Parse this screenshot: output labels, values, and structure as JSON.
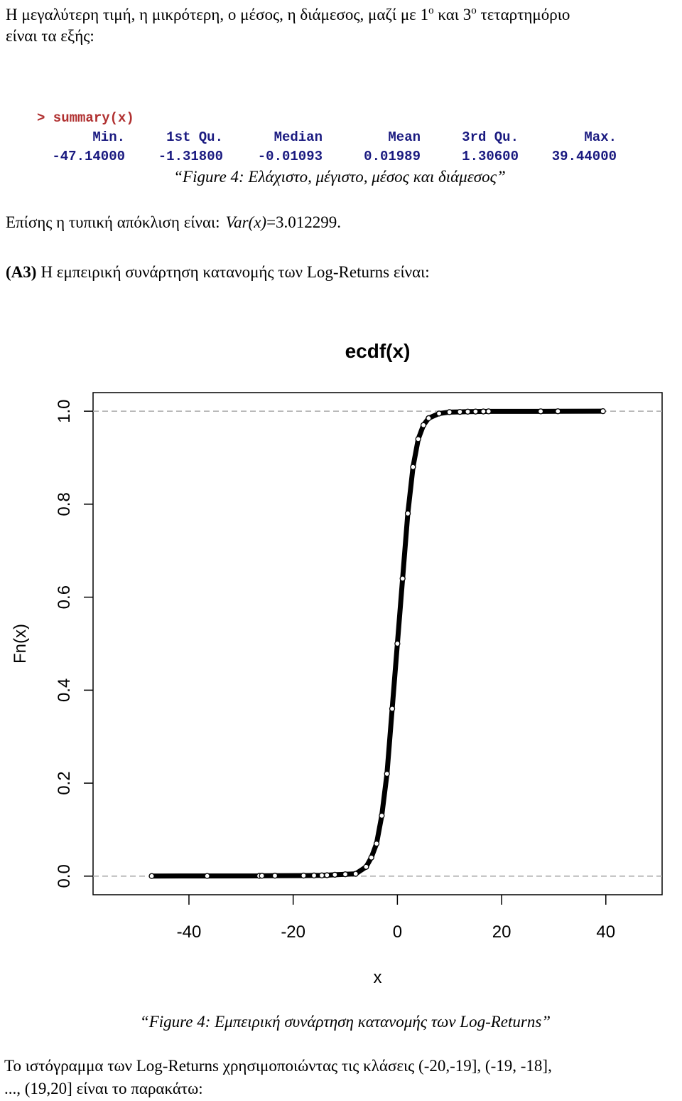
{
  "intro": {
    "line1": [
      "Η μεγαλύτερη τιμή, η μικρότερη, ο μέσος, η διάμεσος, μαζί με 1",
      "ο",
      " και 3",
      "ο",
      " τεταρτημόριο"
    ],
    "line2": "είναι τα εξής:"
  },
  "console": {
    "command": "> summary(x)",
    "headers": [
      "Min.",
      "1st Qu.",
      "Median",
      "Mean",
      "3rd Qu.",
      "Max."
    ],
    "values": [
      "-47.14000",
      "-1.31800",
      "-0.01093",
      "0.01989",
      "1.30600",
      "39.44000"
    ]
  },
  "caption1": "“Figure 4: Ελάχιστο, μέγιστο, μέσος και διάμεσος”",
  "std": {
    "text": "Επίσης η τυπική απόκλιση είναι:",
    "formula": "Var(x)",
    "result": "=3.012299."
  },
  "section": {
    "label": "(A3)",
    "text": "Η εμπειρική συνάρτηση κατανομής των Log-Returns είναι:"
  },
  "chart_data": {
    "type": "ecdf",
    "title": "ecdf(x)",
    "x_label": "x",
    "y_label": "Fn(x)",
    "x": [
      -47.14,
      -36.5,
      -26.5,
      -26,
      -23.5,
      -18,
      -16,
      -14.5,
      -13.5,
      -12,
      -10,
      -8,
      -6,
      -5,
      -4,
      -3,
      -2,
      -1,
      0,
      1,
      2,
      3,
      4,
      5,
      6,
      8,
      10,
      12,
      13.5,
      15,
      16.5,
      17.5,
      27.5,
      30.8,
      39.44
    ],
    "values": [
      0.0002,
      0.0004,
      0.0006,
      0.0008,
      0.001,
      0.0012,
      0.0014,
      0.0016,
      0.002,
      0.003,
      0.004,
      0.005,
      0.02,
      0.04,
      0.07,
      0.13,
      0.22,
      0.36,
      0.5,
      0.64,
      0.78,
      0.88,
      0.94,
      0.97,
      0.985,
      0.995,
      0.998,
      0.9985,
      0.999,
      0.9992,
      0.9994,
      0.9996,
      0.9997,
      0.9998,
      1
    ],
    "color": "#000000",
    "xlim": [
      -58.4,
      50.8
    ],
    "ylim": [
      -0.04,
      1.04
    ],
    "xticks": [
      -40,
      -20,
      0,
      20,
      40
    ],
    "yticks": [
      {
        "value": 0,
        "label": "0.0"
      },
      {
        "value": 0.2,
        "label": "0.2"
      },
      {
        "value": 0.4,
        "label": "0.4"
      },
      {
        "value": 0.6,
        "label": "0.6"
      },
      {
        "value": 0.8,
        "label": "0.8"
      },
      {
        "value": 1,
        "label": "1.0"
      }
    ],
    "hlines": [
      0,
      1
    ]
  },
  "caption2": "“Figure 4: Εμπειρική συνάρτηση κατανομής των Log-Returns”",
  "closing": {
    "lines": [
      "Το ιστόγραμμα των Log-Returns χρησιμοποιώντας τις κλάσεις (-20,-19], (-19, -18],",
      "..., (19,20] είναι το παρακάτω:"
    ]
  }
}
